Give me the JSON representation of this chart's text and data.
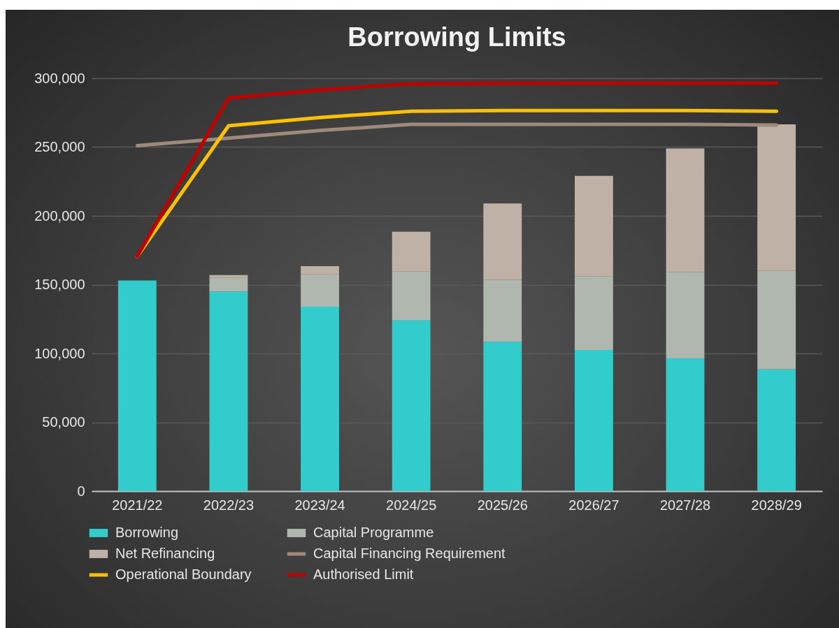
{
  "chart_data": {
    "type": "bar",
    "title": "Borrowing Limits",
    "categories": [
      "2021/22",
      "2022/23",
      "2023/24",
      "2024/25",
      "2025/26",
      "2026/27",
      "2027/28",
      "2028/29"
    ],
    "stacked": true,
    "ylim": [
      0,
      300000
    ],
    "yticks": [
      0,
      {
        "value": 50000,
        "label": "50,000"
      },
      {
        "value": 100000,
        "label": "100,000"
      },
      {
        "value": 150000,
        "label": "150,000"
      },
      {
        "value": 200000,
        "label": "200,000"
      },
      {
        "value": 250000,
        "label": "250,000"
      },
      {
        "value": 300000,
        "label": "300,000"
      }
    ],
    "grid": "y",
    "legend": "bottom",
    "series": [
      {
        "name": "Borrowing",
        "color": "#33cccc",
        "values": [
          153000,
          145000,
          134000,
          124000,
          108500,
          102500,
          96500,
          88500
        ]
      },
      {
        "name": "Capital Programme",
        "color": "#b0b7ae",
        "values": [
          0,
          10000,
          23500,
          35500,
          45000,
          53500,
          62500,
          71500
        ]
      },
      {
        "name": "Net Refinancing",
        "color": "#bfb1a5",
        "values": [
          0,
          2000,
          6000,
          29000,
          55500,
          73000,
          90000,
          106500
        ]
      },
      {
        "name": "Capital Financing Requirement",
        "type": "line",
        "color": "#9e8a7a",
        "values": [
          251000,
          256500,
          262000,
          266500,
          266500,
          266500,
          266500,
          266000
        ]
      },
      {
        "name": "Operational Boundary",
        "type": "line",
        "color": "#ffc000",
        "values": [
          170500,
          265500,
          271500,
          276000,
          276500,
          276500,
          276500,
          276000
        ]
      },
      {
        "name": "Authorised Limit",
        "type": "line",
        "color": "#c00000",
        "values": [
          170500,
          285500,
          291500,
          296000,
          296500,
          296500,
          296500,
          296500
        ]
      }
    ]
  }
}
